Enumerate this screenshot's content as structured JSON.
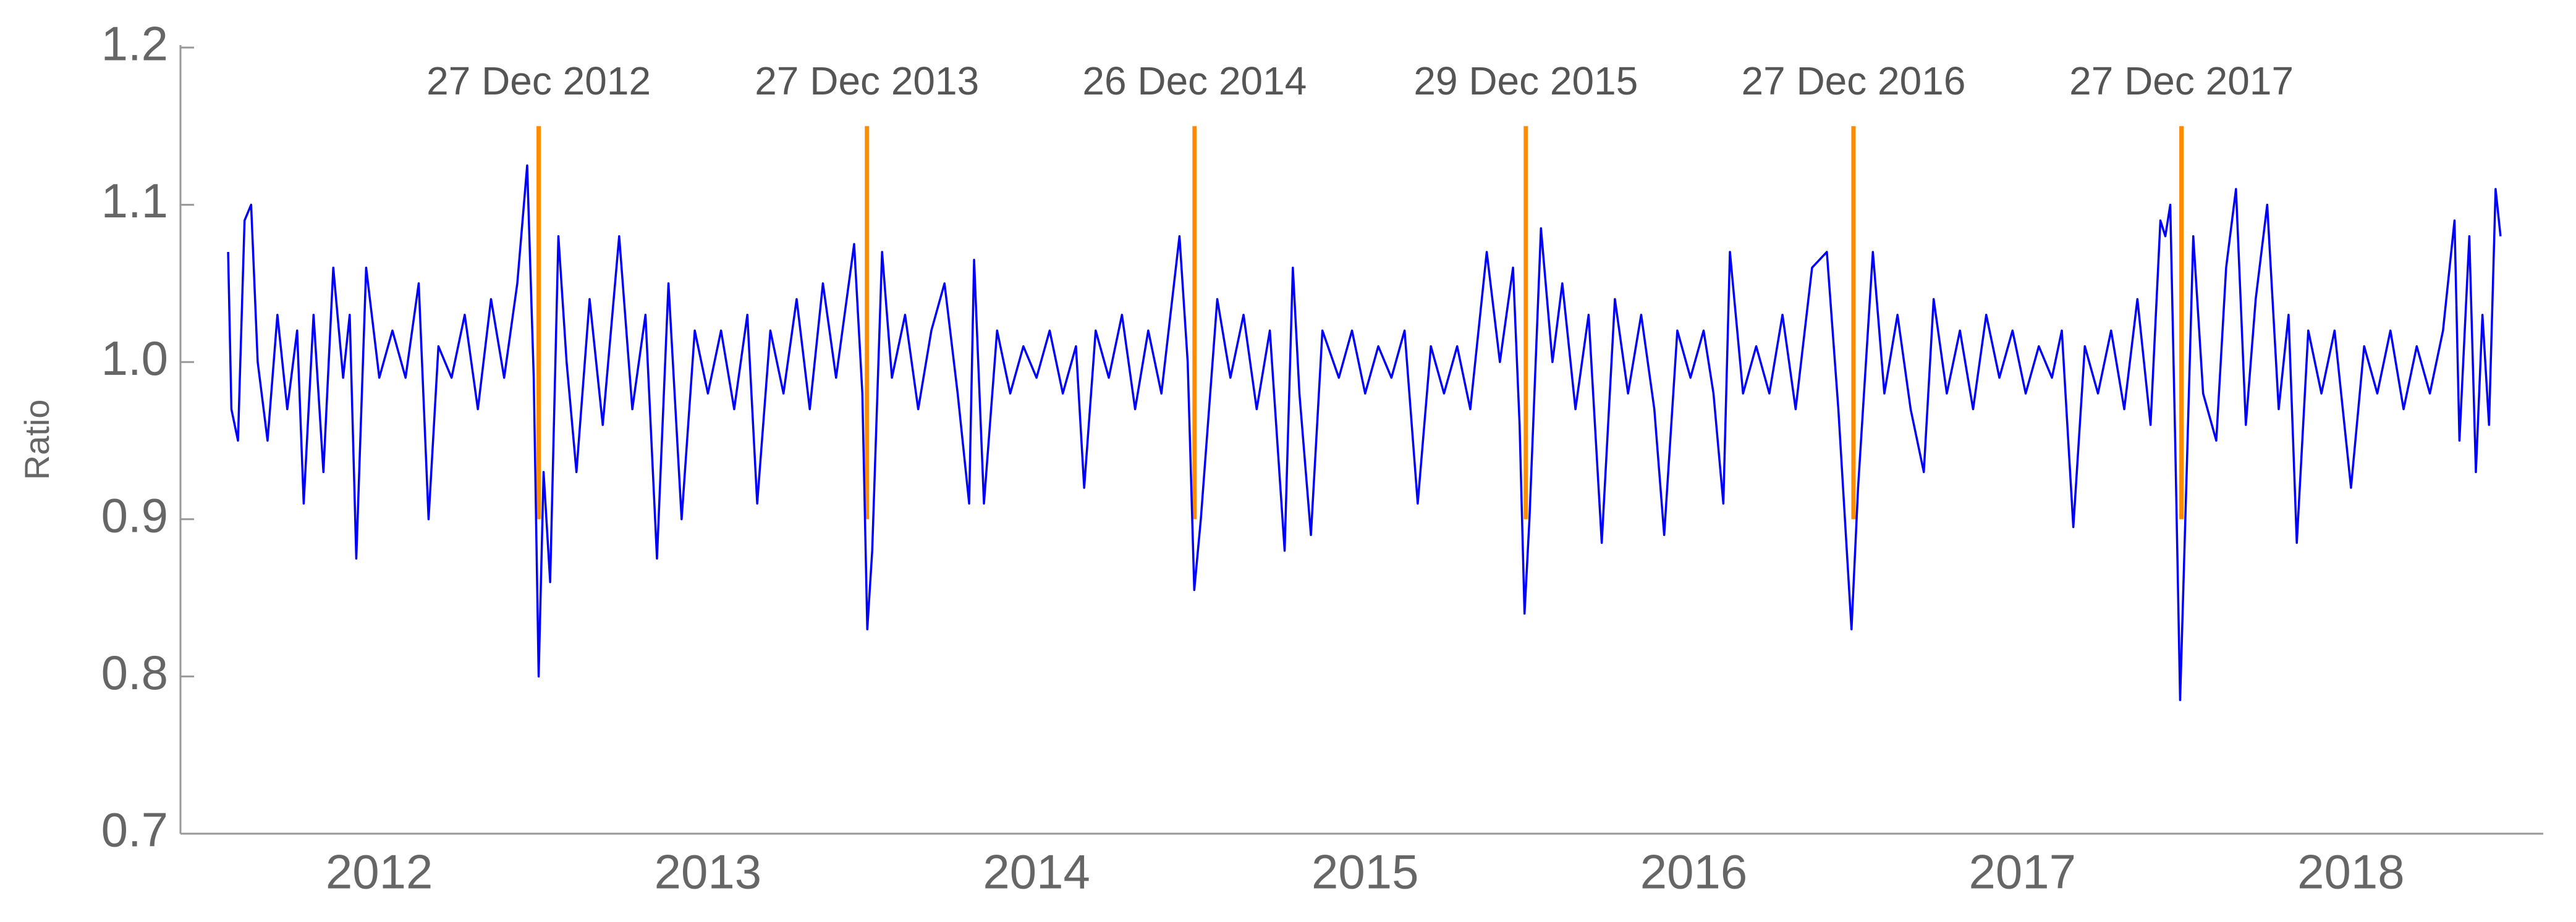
{
  "chart_data": {
    "type": "line",
    "y_label": "Ratio",
    "color": "#0000ff",
    "xlim": [
      2011.895,
      2019.085
    ],
    "xticks": [
      {
        "value": 2012.5,
        "label": "2012"
      },
      {
        "value": 2013.5,
        "label": "2013"
      },
      {
        "value": 2014.5,
        "label": "2014"
      },
      {
        "value": 2015.5,
        "label": "2015"
      },
      {
        "value": 2016.5,
        "label": "2016"
      },
      {
        "value": 2017.5,
        "label": "2017"
      },
      {
        "value": 2018.5,
        "label": "2018"
      }
    ],
    "ylim": [
      0.7,
      1.2
    ],
    "yticks": [
      0.7,
      0.8,
      0.9,
      {
        "value": 1,
        "label": "1.0"
      },
      1.1,
      1.2
    ],
    "annotation_color": "#ff8c00",
    "annotation_range": [
      0.9,
      1.15
    ],
    "annotations": [
      {
        "label": "27 Dec 2012",
        "x": 2012.985
      },
      {
        "label": "27 Dec 2013",
        "x": 2013.984
      },
      {
        "label": "26 Dec 2014",
        "x": 2014.981
      },
      {
        "label": "29 Dec 2015",
        "x": 2015.989
      },
      {
        "label": "27 Dec 2016",
        "x": 2016.986
      },
      {
        "label": "27 Dec 2017",
        "x": 2017.984
      }
    ],
    "x": [
      2012.04,
      2012.05,
      2012.07,
      2012.09,
      2012.11,
      2012.13,
      2012.16,
      2012.19,
      2012.22,
      2012.25,
      2012.27,
      2012.3,
      2012.33,
      2012.36,
      2012.39,
      2012.41,
      2012.43,
      2012.46,
      2012.5,
      2012.54,
      2012.58,
      2012.62,
      2012.65,
      2012.68,
      2012.72,
      2012.76,
      2012.8,
      2012.84,
      2012.88,
      2012.92,
      2012.95,
      2012.97,
      2012.985,
      2013.0,
      2013.02,
      2013.045,
      2013.07,
      2013.1,
      2013.14,
      2013.18,
      2013.23,
      2013.27,
      2013.31,
      2013.345,
      2013.38,
      2013.42,
      2013.46,
      2013.5,
      2013.54,
      2013.58,
      2013.62,
      2013.65,
      2013.69,
      2013.73,
      2013.77,
      2013.81,
      2013.85,
      2013.89,
      2013.945,
      2013.97,
      2013.985,
      2014.0,
      2014.03,
      2014.06,
      2014.1,
      2014.14,
      2014.18,
      2014.22,
      2014.26,
      2014.295,
      2014.31,
      2014.34,
      2014.38,
      2014.42,
      2014.46,
      2014.5,
      2014.54,
      2014.58,
      2014.62,
      2014.645,
      2014.68,
      2014.72,
      2014.76,
      2014.8,
      2014.84,
      2014.88,
      2014.935,
      2014.96,
      2014.98,
      2015.0,
      2015.05,
      2015.09,
      2015.13,
      2015.17,
      2015.21,
      2015.255,
      2015.28,
      2015.3,
      2015.335,
      2015.37,
      2015.42,
      2015.46,
      2015.5,
      2015.54,
      2015.58,
      2015.62,
      2015.66,
      2015.7,
      2015.74,
      2015.78,
      2015.82,
      2015.87,
      2015.91,
      2015.95,
      2015.97,
      2015.985,
      2016.0,
      2016.035,
      2016.07,
      2016.1,
      2016.14,
      2016.18,
      2016.22,
      2016.26,
      2016.3,
      2016.34,
      2016.38,
      2016.41,
      2016.45,
      2016.49,
      2016.53,
      2016.56,
      2016.59,
      2016.61,
      2016.65,
      2016.69,
      2016.73,
      2016.77,
      2016.81,
      2016.86,
      2016.905,
      2016.94,
      2016.98,
      2017.0,
      2017.045,
      2017.08,
      2017.12,
      2017.16,
      2017.2,
      2017.23,
      2017.27,
      2017.31,
      2017.35,
      2017.39,
      2017.43,
      2017.47,
      2017.51,
      2017.55,
      2017.59,
      2017.62,
      2017.655,
      2017.69,
      2017.73,
      2017.77,
      2017.81,
      2017.85,
      2017.89,
      2017.92,
      2017.935,
      2017.95,
      2017.965,
      2017.98,
      2018.0,
      2018.02,
      2018.05,
      2018.09,
      2018.12,
      2018.15,
      2018.18,
      2018.21,
      2018.245,
      2018.28,
      2018.31,
      2018.335,
      2018.37,
      2018.41,
      2018.45,
      2018.5,
      2018.54,
      2018.58,
      2018.62,
      2018.66,
      2018.7,
      2018.74,
      2018.78,
      2018.815,
      2018.83,
      2018.86,
      2018.88,
      2018.9,
      2018.92,
      2018.94,
      2018.955
    ],
    "values": [
      1.07,
      0.97,
      0.95,
      1.09,
      1.1,
      1.0,
      0.95,
      1.03,
      0.97,
      1.02,
      0.91,
      1.03,
      0.93,
      1.06,
      0.99,
      1.03,
      0.875,
      1.06,
      0.99,
      1.02,
      0.99,
      1.05,
      0.9,
      1.01,
      0.99,
      1.03,
      0.97,
      1.04,
      0.99,
      1.05,
      1.125,
      0.99,
      0.8,
      0.93,
      0.86,
      1.08,
      1.0,
      0.93,
      1.04,
      0.96,
      1.08,
      0.97,
      1.03,
      0.875,
      1.05,
      0.9,
      1.02,
      0.98,
      1.02,
      0.97,
      1.03,
      0.91,
      1.02,
      0.98,
      1.04,
      0.97,
      1.05,
      0.99,
      1.075,
      0.98,
      0.83,
      0.88,
      1.07,
      0.99,
      1.03,
      0.97,
      1.02,
      1.05,
      0.98,
      0.91,
      1.065,
      0.91,
      1.02,
      0.98,
      1.01,
      0.99,
      1.02,
      0.98,
      1.01,
      0.92,
      1.02,
      0.99,
      1.03,
      0.97,
      1.02,
      0.98,
      1.08,
      1.0,
      0.855,
      0.9,
      1.04,
      0.99,
      1.03,
      0.97,
      1.02,
      0.88,
      1.06,
      0.98,
      0.89,
      1.02,
      0.99,
      1.02,
      0.98,
      1.01,
      0.99,
      1.02,
      0.91,
      1.01,
      0.98,
      1.01,
      0.97,
      1.07,
      1.0,
      1.06,
      0.96,
      0.84,
      0.9,
      1.085,
      1.0,
      1.05,
      0.97,
      1.03,
      0.885,
      1.04,
      0.98,
      1.03,
      0.97,
      0.89,
      1.02,
      0.99,
      1.02,
      0.98,
      0.91,
      1.07,
      0.98,
      1.01,
      0.98,
      1.03,
      0.97,
      1.06,
      1.07,
      0.97,
      0.83,
      0.92,
      1.07,
      0.98,
      1.03,
      0.97,
      0.93,
      1.04,
      0.98,
      1.02,
      0.97,
      1.03,
      0.99,
      1.02,
      0.98,
      1.01,
      0.99,
      1.02,
      0.895,
      1.01,
      0.98,
      1.02,
      0.97,
      1.04,
      0.96,
      1.09,
      1.08,
      1.1,
      0.95,
      0.785,
      0.93,
      1.08,
      0.98,
      0.95,
      1.06,
      1.11,
      0.96,
      1.04,
      1.1,
      0.97,
      1.03,
      0.885,
      1.02,
      0.98,
      1.02,
      0.92,
      1.01,
      0.98,
      1.02,
      0.97,
      1.01,
      0.98,
      1.02,
      1.09,
      0.95,
      1.08,
      0.93,
      1.03,
      0.96,
      1.11,
      1.08
    ]
  }
}
